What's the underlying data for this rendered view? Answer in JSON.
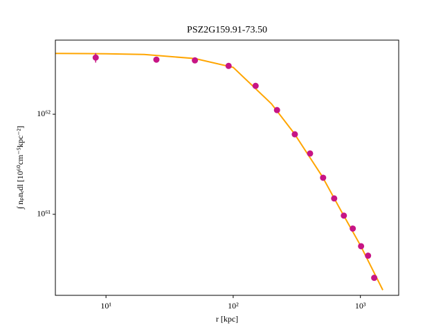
{
  "chart_data": {
    "type": "scatter",
    "title": "PSZ2G159.91-73.50",
    "x_label": "r [kpc]",
    "y_label": "∫ nₚnₑdl [10⁶⁰cm⁻⁵kpc⁻²]",
    "xscale": "log",
    "yscale": "log",
    "xlim": [
      4,
      2000
    ],
    "ylim": [
      1.55e+60,
      5.5e+62
    ],
    "xticks": [
      {
        "value": 10,
        "label": "10¹"
      },
      {
        "value": 100,
        "label": "10²"
      },
      {
        "value": 1000,
        "label": "10³"
      }
    ],
    "yticks": [
      {
        "value": 1e+61,
        "label": "10⁶¹"
      },
      {
        "value": 1e+62,
        "label": "10⁶²"
      }
    ],
    "points": {
      "color": "#c71585",
      "x": [
        8.3,
        24.9,
        50,
        92,
        150,
        221,
        305,
        402,
        509,
        622,
        741,
        871,
        1012,
        1148,
        1284
      ],
      "y": [
        3.68e+62,
        3.51e+62,
        3.45e+62,
        3.04e+62,
        1.92e+62,
        1.1e+62,
        6.3e+61,
        4.05e+61,
        2.32e+61,
        1.44e+61,
        9.7e+60,
        7.2e+60,
        4.8e+60,
        3.86e+60,
        2.32e+60
      ],
      "errors": [
        4e+61,
        null,
        null,
        null,
        null,
        null,
        null,
        null,
        null,
        null,
        null,
        null,
        null,
        null,
        null
      ]
    },
    "fit": {
      "color": "#ffa500",
      "x": [
        4,
        10,
        20,
        50,
        100,
        200,
        300,
        500,
        700,
        1000,
        1500
      ],
      "y": [
        4.05e+62,
        4.02e+62,
        3.95e+62,
        3.6e+62,
        2.94e+62,
        1.27e+62,
        6.5e+61,
        2.4e+61,
        1.1e+61,
        4.9e+60,
        1.75e+60
      ]
    }
  }
}
